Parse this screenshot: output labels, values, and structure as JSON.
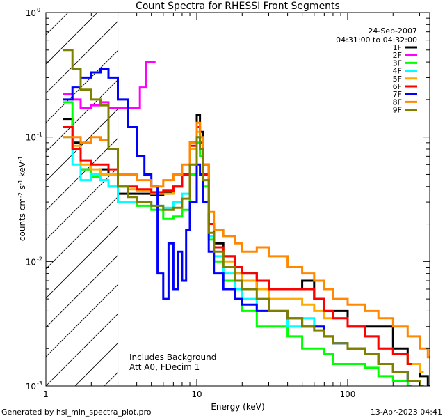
{
  "chart_data": {
    "type": "line",
    "title": "Count Spectra for RHESSI Front Segments",
    "xlabel": "Energy (keV)",
    "ylabel": "counts cm",
    "ylabel_parts": [
      "counts cm",
      "-2",
      " s",
      "-1",
      " keV",
      "-1"
    ],
    "xscale": "log",
    "yscale": "log",
    "xlim": [
      1,
      350
    ],
    "ylim": [
      0.001,
      1
    ],
    "x_ticks": [
      {
        "value": 1,
        "label": "1"
      },
      {
        "value": 10,
        "label": "10"
      },
      {
        "value": 100,
        "label": "100"
      }
    ],
    "y_ticks": [
      {
        "value": 1,
        "base": "10",
        "exp": "0"
      },
      {
        "value": 0.1,
        "base": "10",
        "exp": "-1"
      },
      {
        "value": 0.01,
        "base": "10",
        "exp": "-2"
      },
      {
        "value": 0.001,
        "base": "10",
        "exp": "-3"
      }
    ],
    "date": "24-Sep-2007",
    "time_range": "04:31:00 to 04:32:00",
    "annotations": [
      "Includes Background",
      "Att A0, FDecim 1"
    ],
    "attenuator_region_upper_kev": 3,
    "series": [
      {
        "name": "1F",
        "color": "#000000",
        "points": [
          [
            1.3,
            0.14
          ],
          [
            1.5,
            0.09
          ],
          [
            1.7,
            0.055
          ],
          [
            2.0,
            0.05
          ],
          [
            2.3,
            0.055
          ],
          [
            2.6,
            0.05
          ],
          [
            3,
            0.035
          ],
          [
            3.5,
            0.035
          ],
          [
            4,
            0.035
          ],
          [
            5,
            0.034
          ],
          [
            6,
            0.036
          ],
          [
            7,
            0.04
          ],
          [
            8,
            0.05
          ],
          [
            9,
            0.09
          ],
          [
            10,
            0.15
          ],
          [
            10.5,
            0.11
          ],
          [
            11,
            0.06
          ],
          [
            12,
            0.02
          ],
          [
            13,
            0.014
          ],
          [
            15,
            0.011
          ],
          [
            18,
            0.008
          ],
          [
            20,
            0.008
          ],
          [
            25,
            0.006
          ],
          [
            30,
            0.006
          ],
          [
            40,
            0.006
          ],
          [
            50,
            0.007
          ],
          [
            60,
            0.005
          ],
          [
            70,
            0.004
          ],
          [
            80,
            0.004
          ],
          [
            100,
            0.003
          ],
          [
            130,
            0.003
          ],
          [
            160,
            0.003
          ],
          [
            200,
            0.002
          ],
          [
            250,
            0.0015
          ],
          [
            300,
            0.0012
          ],
          [
            340,
            0.001
          ]
        ]
      },
      {
        "name": "2F",
        "color": "#ff00ff",
        "points": [
          [
            1.3,
            0.22
          ],
          [
            1.5,
            0.2
          ],
          [
            1.7,
            0.17
          ],
          [
            2.0,
            0.18
          ],
          [
            2.3,
            0.19
          ],
          [
            2.6,
            0.17
          ],
          [
            4.2,
            0.25
          ],
          [
            4.6,
            0.25
          ],
          [
            4.6,
            0.4
          ],
          [
            5.0,
            0.4
          ]
        ]
      },
      {
        "name": "3F",
        "color": "#00ff00",
        "points": [
          [
            1.3,
            0.19
          ],
          [
            1.5,
            0.08
          ],
          [
            1.7,
            0.055
          ],
          [
            2.0,
            0.048
          ],
          [
            2.3,
            0.045
          ],
          [
            2.6,
            0.04
          ],
          [
            3,
            0.03
          ],
          [
            3.5,
            0.03
          ],
          [
            4,
            0.028
          ],
          [
            5,
            0.026
          ],
          [
            6,
            0.022
          ],
          [
            7,
            0.023
          ],
          [
            8,
            0.026
          ],
          [
            9,
            0.05
          ],
          [
            10,
            0.09
          ],
          [
            10.5,
            0.07
          ],
          [
            11,
            0.04
          ],
          [
            12,
            0.015
          ],
          [
            13,
            0.01
          ],
          [
            15,
            0.007
          ],
          [
            18,
            0.005
          ],
          [
            20,
            0.004
          ],
          [
            25,
            0.003
          ],
          [
            30,
            0.003
          ],
          [
            40,
            0.0025
          ],
          [
            50,
            0.002
          ],
          [
            60,
            0.002
          ],
          [
            70,
            0.0018
          ],
          [
            80,
            0.0015
          ],
          [
            100,
            0.0015
          ],
          [
            130,
            0.0014
          ],
          [
            160,
            0.0012
          ],
          [
            200,
            0.0011
          ],
          [
            250,
            0.001
          ]
        ]
      },
      {
        "name": "4F",
        "color": "#00ffff",
        "points": [
          [
            1.3,
            0.1
          ],
          [
            1.5,
            0.06
          ],
          [
            1.7,
            0.045
          ],
          [
            2.0,
            0.05
          ],
          [
            2.3,
            0.045
          ],
          [
            2.6,
            0.04
          ],
          [
            3,
            0.03
          ],
          [
            3.5,
            0.03
          ],
          [
            4,
            0.03
          ],
          [
            5,
            0.028
          ],
          [
            6,
            0.027
          ],
          [
            7,
            0.03
          ],
          [
            8,
            0.035
          ],
          [
            9,
            0.06
          ],
          [
            10,
            0.1
          ],
          [
            10.5,
            0.08
          ],
          [
            11,
            0.045
          ],
          [
            12,
            0.016
          ],
          [
            13,
            0.011
          ],
          [
            15,
            0.008
          ],
          [
            18,
            0.006
          ],
          [
            20,
            0.005
          ],
          [
            25,
            0.004
          ],
          [
            30,
            0.004
          ],
          [
            40,
            0.003
          ],
          [
            50,
            0.0035
          ],
          [
            60,
            0.003
          ],
          [
            70,
            0.0025
          ],
          [
            80,
            0.0022
          ],
          [
            100,
            0.002
          ],
          [
            130,
            0.0018
          ],
          [
            160,
            0.0015
          ],
          [
            200,
            0.0013
          ],
          [
            250,
            0.0011
          ]
        ]
      },
      {
        "name": "5F",
        "color": "#ffaa00",
        "points": [
          [
            1.3,
            0.12
          ],
          [
            1.5,
            0.085
          ],
          [
            1.7,
            0.06
          ],
          [
            2.0,
            0.055
          ],
          [
            2.3,
            0.05
          ],
          [
            2.6,
            0.05
          ],
          [
            3,
            0.04
          ],
          [
            3.5,
            0.038
          ],
          [
            4,
            0.037
          ],
          [
            5,
            0.035
          ],
          [
            6,
            0.035
          ],
          [
            7,
            0.04
          ],
          [
            8,
            0.05
          ],
          [
            9,
            0.08
          ],
          [
            10,
            0.11
          ],
          [
            10.5,
            0.09
          ],
          [
            11,
            0.05
          ],
          [
            12,
            0.02
          ],
          [
            13,
            0.013
          ],
          [
            15,
            0.01
          ],
          [
            18,
            0.008
          ],
          [
            20,
            0.007
          ],
          [
            25,
            0.006
          ],
          [
            30,
            0.005
          ],
          [
            40,
            0.005
          ],
          [
            50,
            0.0045
          ],
          [
            60,
            0.004
          ],
          [
            70,
            0.0035
          ],
          [
            80,
            0.0035
          ],
          [
            100,
            0.003
          ],
          [
            130,
            0.0025
          ],
          [
            160,
            0.002
          ],
          [
            200,
            0.0018
          ],
          [
            250,
            0.0015
          ],
          [
            300,
            0.0013
          ]
        ]
      },
      {
        "name": "6F",
        "color": "#ff0000",
        "points": [
          [
            1.3,
            0.12
          ],
          [
            1.5,
            0.08
          ],
          [
            1.7,
            0.065
          ],
          [
            2.0,
            0.06
          ],
          [
            2.3,
            0.06
          ],
          [
            2.6,
            0.055
          ],
          [
            3,
            0.04
          ],
          [
            3.5,
            0.04
          ],
          [
            4,
            0.038
          ],
          [
            5,
            0.036
          ],
          [
            6,
            0.037
          ],
          [
            7,
            0.04
          ],
          [
            8,
            0.05
          ],
          [
            9,
            0.085
          ],
          [
            10,
            0.12
          ],
          [
            10.5,
            0.09
          ],
          [
            11,
            0.05
          ],
          [
            12,
            0.02
          ],
          [
            13,
            0.013
          ],
          [
            15,
            0.011
          ],
          [
            18,
            0.009
          ],
          [
            20,
            0.008
          ],
          [
            25,
            0.007
          ],
          [
            30,
            0.006
          ],
          [
            40,
            0.006
          ],
          [
            50,
            0.006
          ],
          [
            60,
            0.005
          ],
          [
            70,
            0.004
          ],
          [
            80,
            0.0035
          ],
          [
            100,
            0.003
          ],
          [
            130,
            0.0025
          ],
          [
            160,
            0.002
          ],
          [
            200,
            0.0018
          ],
          [
            250,
            0.0015
          ]
        ]
      },
      {
        "name": "7F",
        "color": "#0000ff",
        "points": [
          [
            1.3,
            0.2
          ],
          [
            1.5,
            0.25
          ],
          [
            1.7,
            0.3
          ],
          [
            2.0,
            0.33
          ],
          [
            2.3,
            0.35
          ],
          [
            2.6,
            0.3
          ],
          [
            3,
            0.2
          ],
          [
            3.5,
            0.12
          ],
          [
            4,
            0.07
          ],
          [
            4.5,
            0.05
          ],
          [
            5,
            0.04
          ],
          [
            5.5,
            0.008
          ],
          [
            6,
            0.005
          ],
          [
            6.5,
            0.014
          ],
          [
            7,
            0.006
          ],
          [
            7.5,
            0.012
          ],
          [
            8,
            0.007
          ],
          [
            8.5,
            0.018
          ],
          [
            9,
            0.03
          ],
          [
            10,
            0.06
          ],
          [
            10.5,
            0.05
          ],
          [
            11,
            0.03
          ],
          [
            12,
            0.012
          ],
          [
            13,
            0.008
          ],
          [
            15,
            0.006
          ],
          [
            18,
            0.005
          ],
          [
            20,
            0.0045
          ],
          [
            25,
            0.004
          ],
          [
            30,
            0.004
          ],
          [
            40,
            0.0035
          ],
          [
            50,
            0.003
          ],
          [
            60,
            0.003
          ],
          [
            70,
            0.0025
          ],
          [
            80,
            0.0022
          ],
          [
            100,
            0.002
          ],
          [
            130,
            0.0018
          ],
          [
            160,
            0.0015
          ],
          [
            200,
            0.0013
          ],
          [
            250,
            0.0011
          ]
        ]
      },
      {
        "name": "8F",
        "color": "#ff8800",
        "points": [
          [
            1.3,
            0.1
          ],
          [
            1.5,
            0.1
          ],
          [
            1.7,
            0.09
          ],
          [
            2.0,
            0.1
          ],
          [
            2.3,
            0.095
          ],
          [
            2.6,
            0.08
          ],
          [
            3,
            0.05
          ],
          [
            3.5,
            0.05
          ],
          [
            4,
            0.045
          ],
          [
            5,
            0.04
          ],
          [
            6,
            0.045
          ],
          [
            7,
            0.05
          ],
          [
            8,
            0.06
          ],
          [
            9,
            0.09
          ],
          [
            10,
            0.13
          ],
          [
            10.5,
            0.1
          ],
          [
            11,
            0.06
          ],
          [
            12,
            0.025
          ],
          [
            13,
            0.018
          ],
          [
            15,
            0.016
          ],
          [
            18,
            0.014
          ],
          [
            20,
            0.012
          ],
          [
            25,
            0.013
          ],
          [
            30,
            0.011
          ],
          [
            40,
            0.009
          ],
          [
            50,
            0.008
          ],
          [
            60,
            0.007
          ],
          [
            70,
            0.006
          ],
          [
            80,
            0.005
          ],
          [
            100,
            0.0045
          ],
          [
            130,
            0.004
          ],
          [
            160,
            0.0035
          ],
          [
            200,
            0.003
          ],
          [
            250,
            0.0025
          ],
          [
            300,
            0.002
          ],
          [
            340,
            0.0017
          ]
        ]
      },
      {
        "name": "9F",
        "color": "#808000",
        "points": [
          [
            1.3,
            0.5
          ],
          [
            1.5,
            0.35
          ],
          [
            1.7,
            0.24
          ],
          [
            2.0,
            0.2
          ],
          [
            2.3,
            0.18
          ],
          [
            2.6,
            0.08
          ],
          [
            3,
            0.04
          ],
          [
            3.5,
            0.033
          ],
          [
            4,
            0.03
          ],
          [
            5,
            0.028
          ],
          [
            6,
            0.026
          ],
          [
            7,
            0.027
          ],
          [
            8,
            0.032
          ],
          [
            9,
            0.06
          ],
          [
            10,
            0.1
          ],
          [
            10.5,
            0.08
          ],
          [
            11,
            0.045
          ],
          [
            12,
            0.017
          ],
          [
            13,
            0.012
          ],
          [
            15,
            0.009
          ],
          [
            18,
            0.007
          ],
          [
            20,
            0.006
          ],
          [
            25,
            0.005
          ],
          [
            30,
            0.004
          ],
          [
            40,
            0.0035
          ],
          [
            50,
            0.003
          ],
          [
            60,
            0.0028
          ],
          [
            70,
            0.0025
          ],
          [
            80,
            0.0022
          ],
          [
            100,
            0.002
          ],
          [
            130,
            0.0018
          ],
          [
            160,
            0.0015
          ],
          [
            200,
            0.0013
          ],
          [
            250,
            0.0011
          ],
          [
            300,
            0.001
          ]
        ]
      }
    ]
  },
  "footer": {
    "generated_by": "Generated by hsi_min_spectra_plot.pro",
    "timestamp": "13-Apr-2023 04:41"
  }
}
